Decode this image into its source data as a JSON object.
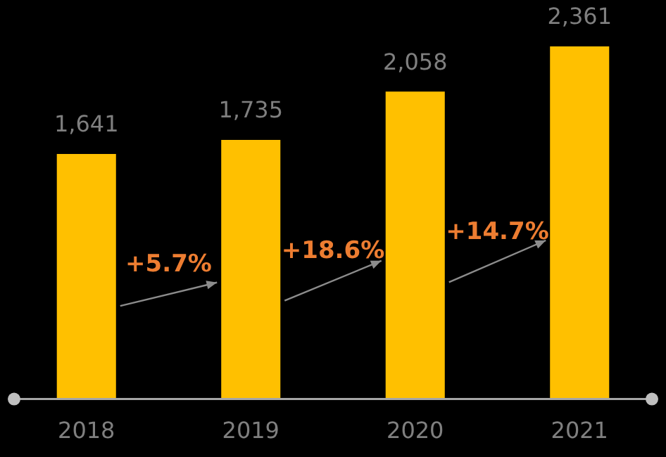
{
  "chart_data": {
    "type": "bar",
    "categories": [
      "2018",
      "2019",
      "2020",
      "2021"
    ],
    "values": [
      1641,
      1735,
      2058,
      2361
    ],
    "value_labels": [
      "1,641",
      "1,735",
      "2,058",
      "2,361"
    ],
    "color": "#ffc000",
    "legend": false,
    "annotations": [
      "+5.7%",
      "+18.6%",
      "+14.7%"
    ]
  }
}
